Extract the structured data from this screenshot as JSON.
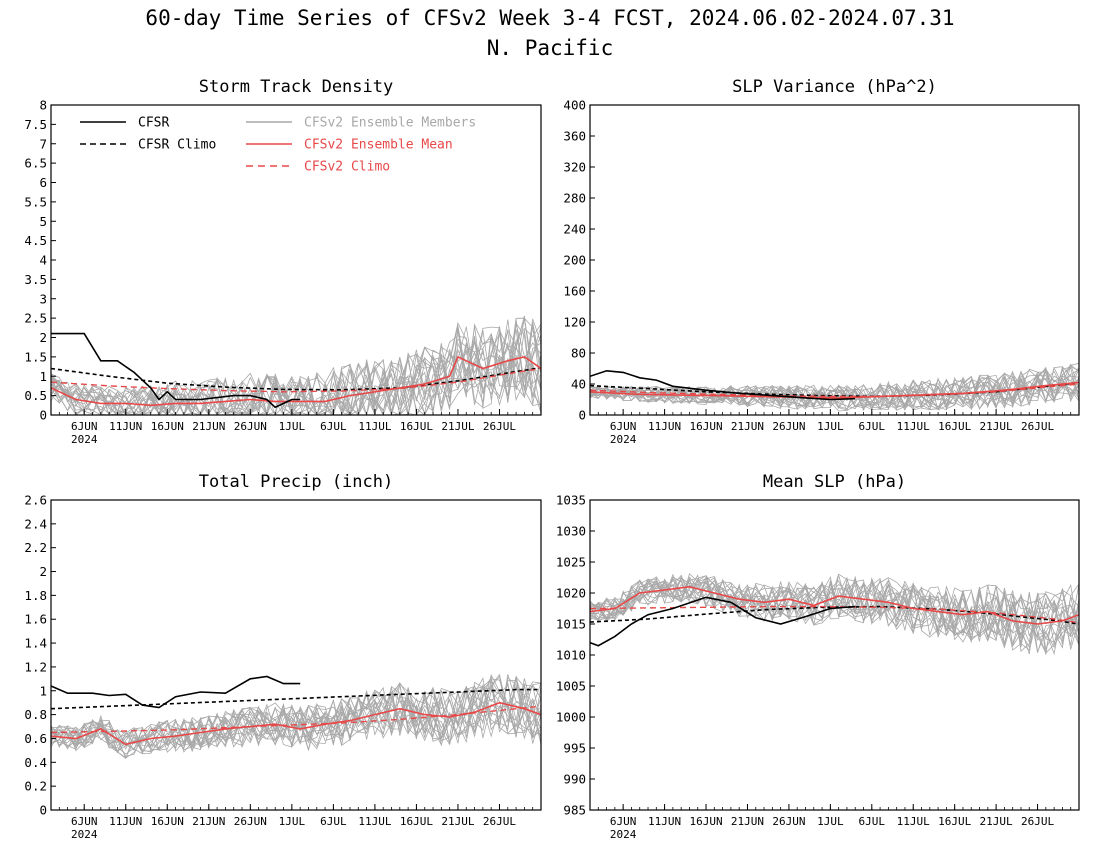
{
  "title": "60-day Time Series of CFSv2 Week 3-4 FCST, 2024.06.02-2024.07.31",
  "subtitle": "N. Pacific",
  "colors": {
    "cfsr": "#000000",
    "members": "#a8a8a8",
    "mean": "#e84848"
  },
  "x_tick_labels": [
    "6JUN",
    "11JUN",
    "16JUN",
    "21JUN",
    "26JUN",
    "1JUL",
    "6JUL",
    "11JUL",
    "16JUL",
    "21JUL",
    "26JUL"
  ],
  "x_year_label": "2024",
  "legend": [
    "CFSR",
    "CFSR Climo",
    "CFSv2 Ensemble Members",
    "CFSv2 Ensemble Mean",
    "CFSv2 Climo"
  ],
  "chart_data": [
    {
      "type": "line",
      "title": "Storm Track Density",
      "ylim": [
        0,
        8
      ],
      "yticks": [
        0,
        0.5,
        1,
        1.5,
        2,
        2.5,
        3,
        3.5,
        4,
        4.5,
        5,
        5.5,
        6,
        6.5,
        7,
        7.5,
        8
      ],
      "x_dates": [
        "2024-06-02",
        "2024-07-31"
      ],
      "series": [
        {
          "name": "CFSR",
          "x": [
            "2024-06-02",
            "2024-06-06",
            "2024-06-08",
            "2024-06-10",
            "2024-06-12",
            "2024-06-14",
            "2024-06-15",
            "2024-06-16",
            "2024-06-17",
            "2024-06-18",
            "2024-06-20",
            "2024-06-24",
            "2024-06-26",
            "2024-06-28",
            "2024-06-29",
            "2024-06-30",
            "2024-07-01",
            "2024-07-02"
          ],
          "y": [
            2.1,
            2.1,
            1.4,
            1.4,
            1.1,
            0.7,
            0.4,
            0.6,
            0.4,
            0.4,
            0.4,
            0.5,
            0.5,
            0.4,
            0.2,
            0.3,
            0.4,
            0.4
          ]
        },
        {
          "name": "CFSR Climo",
          "x": [
            "2024-06-02",
            "2024-06-09",
            "2024-06-16",
            "2024-06-23",
            "2024-06-30",
            "2024-07-07",
            "2024-07-14",
            "2024-07-21",
            "2024-07-28",
            "2024-07-31"
          ],
          "y": [
            1.2,
            1.0,
            0.82,
            0.72,
            0.66,
            0.65,
            0.7,
            0.88,
            1.12,
            1.22
          ]
        },
        {
          "name": "CFSv2 Ensemble Mean",
          "x": [
            "2024-06-02",
            "2024-06-05",
            "2024-06-08",
            "2024-06-11",
            "2024-06-14",
            "2024-06-17",
            "2024-06-20",
            "2024-06-23",
            "2024-06-26",
            "2024-06-29",
            "2024-07-02",
            "2024-07-05",
            "2024-07-08",
            "2024-07-11",
            "2024-07-14",
            "2024-07-17",
            "2024-07-20",
            "2024-07-21",
            "2024-07-24",
            "2024-07-27",
            "2024-07-29",
            "2024-07-31"
          ],
          "y": [
            0.7,
            0.4,
            0.3,
            0.3,
            0.25,
            0.3,
            0.3,
            0.35,
            0.4,
            0.35,
            0.35,
            0.35,
            0.5,
            0.6,
            0.7,
            0.8,
            1.0,
            1.5,
            1.2,
            1.4,
            1.5,
            1.2
          ]
        },
        {
          "name": "CFSv2 Climo",
          "x": [
            "2024-06-02",
            "2024-06-09",
            "2024-06-16",
            "2024-06-23",
            "2024-06-30",
            "2024-07-07",
            "2024-07-14",
            "2024-07-21",
            "2024-07-28",
            "2024-07-31"
          ],
          "y": [
            0.85,
            0.75,
            0.68,
            0.63,
            0.6,
            0.62,
            0.68,
            0.85,
            1.1,
            1.2
          ]
        }
      ]
    },
    {
      "type": "line",
      "title": "SLP Variance (hPa^2)",
      "ylim": [
        0,
        400
      ],
      "yticks": [
        0,
        40,
        80,
        120,
        160,
        200,
        240,
        280,
        320,
        360,
        400
      ],
      "x_dates": [
        "2024-06-02",
        "2024-07-31"
      ],
      "series": [
        {
          "name": "CFSR",
          "x": [
            "2024-06-02",
            "2024-06-04",
            "2024-06-06",
            "2024-06-08",
            "2024-06-10",
            "2024-06-12",
            "2024-06-16",
            "2024-06-20",
            "2024-06-24",
            "2024-06-28",
            "2024-07-01",
            "2024-07-04"
          ],
          "y": [
            50,
            57,
            55,
            48,
            45,
            37,
            32,
            28,
            25,
            22,
            20,
            21
          ]
        },
        {
          "name": "CFSR Climo",
          "x": [
            "2024-06-02",
            "2024-06-09",
            "2024-06-16",
            "2024-06-23",
            "2024-06-30",
            "2024-07-07",
            "2024-07-14",
            "2024-07-21",
            "2024-07-28",
            "2024-07-31"
          ],
          "y": [
            38,
            34,
            30,
            27,
            25,
            24,
            26,
            30,
            38,
            42
          ]
        },
        {
          "name": "CFSv2 Ensemble Mean",
          "x": [
            "2024-06-02",
            "2024-06-07",
            "2024-06-12",
            "2024-06-17",
            "2024-06-22",
            "2024-06-27",
            "2024-07-02",
            "2024-07-07",
            "2024-07-12",
            "2024-07-17",
            "2024-07-22",
            "2024-07-27",
            "2024-07-31"
          ],
          "y": [
            30,
            27,
            26,
            25,
            24,
            23,
            22,
            24,
            26,
            28,
            32,
            38,
            42
          ]
        },
        {
          "name": "CFSv2 Climo",
          "x": [
            "2024-06-02",
            "2024-06-09",
            "2024-06-16",
            "2024-06-23",
            "2024-06-30",
            "2024-07-07",
            "2024-07-14",
            "2024-07-21",
            "2024-07-28",
            "2024-07-31"
          ],
          "y": [
            32,
            29,
            27,
            25,
            24,
            24,
            26,
            30,
            37,
            40
          ]
        }
      ]
    },
    {
      "type": "line",
      "title": "Total Precip (inch)",
      "ylim": [
        0,
        2.6
      ],
      "yticks": [
        0,
        0.2,
        0.4,
        0.6,
        0.8,
        1,
        1.2,
        1.4,
        1.6,
        1.8,
        2,
        2.2,
        2.4,
        2.6
      ],
      "x_dates": [
        "2024-06-02",
        "2024-07-31"
      ],
      "series": [
        {
          "name": "CFSR",
          "x": [
            "2024-06-02",
            "2024-06-04",
            "2024-06-07",
            "2024-06-09",
            "2024-06-11",
            "2024-06-13",
            "2024-06-15",
            "2024-06-17",
            "2024-06-20",
            "2024-06-23",
            "2024-06-26",
            "2024-06-28",
            "2024-06-30",
            "2024-07-02"
          ],
          "y": [
            1.04,
            0.98,
            0.98,
            0.96,
            0.97,
            0.88,
            0.86,
            0.95,
            0.99,
            0.98,
            1.1,
            1.12,
            1.06,
            1.06
          ]
        },
        {
          "name": "CFSR Climo",
          "x": [
            "2024-06-02",
            "2024-06-09",
            "2024-06-16",
            "2024-06-23",
            "2024-06-30",
            "2024-07-07",
            "2024-07-14",
            "2024-07-21",
            "2024-07-28",
            "2024-07-31"
          ],
          "y": [
            0.85,
            0.87,
            0.89,
            0.91,
            0.93,
            0.95,
            0.97,
            0.99,
            1.01,
            1.01
          ]
        },
        {
          "name": "CFSv2 Ensemble Mean",
          "x": [
            "2024-06-02",
            "2024-06-05",
            "2024-06-08",
            "2024-06-11",
            "2024-06-14",
            "2024-06-17",
            "2024-06-20",
            "2024-06-23",
            "2024-06-26",
            "2024-06-29",
            "2024-07-02",
            "2024-07-05",
            "2024-07-08",
            "2024-07-11",
            "2024-07-14",
            "2024-07-17",
            "2024-07-20",
            "2024-07-23",
            "2024-07-26",
            "2024-07-29",
            "2024-07-31"
          ],
          "y": [
            0.62,
            0.6,
            0.68,
            0.55,
            0.6,
            0.62,
            0.65,
            0.68,
            0.7,
            0.72,
            0.68,
            0.72,
            0.75,
            0.8,
            0.85,
            0.8,
            0.78,
            0.82,
            0.9,
            0.85,
            0.8
          ]
        },
        {
          "name": "CFSv2 Climo",
          "x": [
            "2024-06-02",
            "2024-06-09",
            "2024-06-16",
            "2024-06-23",
            "2024-06-30",
            "2024-07-07",
            "2024-07-14",
            "2024-07-21",
            "2024-07-28",
            "2024-07-31"
          ],
          "y": [
            0.65,
            0.66,
            0.67,
            0.69,
            0.71,
            0.73,
            0.76,
            0.8,
            0.85,
            0.87
          ]
        }
      ]
    },
    {
      "type": "line",
      "title": "Mean SLP (hPa)",
      "ylim": [
        985,
        1035
      ],
      "yticks": [
        985,
        990,
        995,
        1000,
        1005,
        1010,
        1015,
        1020,
        1025,
        1030,
        1035
      ],
      "x_dates": [
        "2024-06-02",
        "2024-07-31"
      ],
      "series": [
        {
          "name": "CFSR",
          "x": [
            "2024-06-02",
            "2024-06-03",
            "2024-06-05",
            "2024-06-07",
            "2024-06-09",
            "2024-06-12",
            "2024-06-16",
            "2024-06-19",
            "2024-06-22",
            "2024-06-25",
            "2024-06-28",
            "2024-07-01",
            "2024-07-04"
          ],
          "y": [
            1012,
            1011.5,
            1013,
            1015,
            1016.5,
            1017.5,
            1019.3,
            1018.5,
            1016,
            1015,
            1016.2,
            1017.5,
            1017.8
          ]
        },
        {
          "name": "CFSR Climo",
          "x": [
            "2024-06-02",
            "2024-06-09",
            "2024-06-16",
            "2024-06-23",
            "2024-06-30",
            "2024-07-07",
            "2024-07-14",
            "2024-07-21",
            "2024-07-28",
            "2024-07-31"
          ],
          "y": [
            1015.3,
            1015.8,
            1016.6,
            1017.3,
            1017.7,
            1017.8,
            1017.4,
            1016.6,
            1015.6,
            1015
          ]
        },
        {
          "name": "CFSv2 Ensemble Mean",
          "x": [
            "2024-06-02",
            "2024-06-05",
            "2024-06-08",
            "2024-06-11",
            "2024-06-14",
            "2024-06-17",
            "2024-06-20",
            "2024-06-23",
            "2024-06-26",
            "2024-06-29",
            "2024-07-02",
            "2024-07-05",
            "2024-07-08",
            "2024-07-11",
            "2024-07-14",
            "2024-07-17",
            "2024-07-20",
            "2024-07-23",
            "2024-07-26",
            "2024-07-29",
            "2024-07-31"
          ],
          "y": [
            1017,
            1017.5,
            1020,
            1020.5,
            1021,
            1020,
            1019,
            1018.5,
            1019,
            1018,
            1019.5,
            1019,
            1018.5,
            1017.5,
            1017,
            1016.5,
            1017,
            1015.5,
            1015,
            1015.5,
            1016.5
          ]
        },
        {
          "name": "CFSv2 Climo",
          "x": [
            "2024-06-02",
            "2024-06-09",
            "2024-06-16",
            "2024-06-23",
            "2024-06-30",
            "2024-07-07",
            "2024-07-14",
            "2024-07-21",
            "2024-07-28",
            "2024-07-31"
          ],
          "y": [
            1017.5,
            1017.6,
            1017.7,
            1017.8,
            1017.8,
            1017.7,
            1017.4,
            1016.8,
            1015.8,
            1015.2
          ]
        }
      ]
    }
  ]
}
